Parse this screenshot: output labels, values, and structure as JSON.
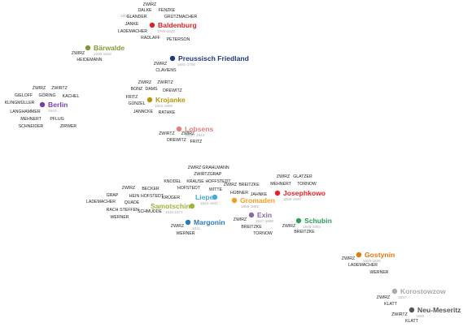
{
  "places": [
    {
      "id": "baldenburg",
      "name": "Baldenburg",
      "years": "1765-1822",
      "color": "#d62728",
      "names": [
        "ZWIRZ",
        "DALKE",
        "FENZKE",
        "GLANDER",
        "GRÜTZMACHER",
        "JANKE",
        "LADEMACHER",
        "RADLAFF",
        "PETERSON"
      ],
      "extra": "1801"
    },
    {
      "id": "barwalde",
      "name": "Bärwalde",
      "years": "1830-1832",
      "color": "#7f9a3a",
      "names": [
        "ZWIRZ",
        "HEIDEMANN"
      ]
    },
    {
      "id": "preussisch-friedland",
      "name": "Preussisch Friedland",
      "years": "1691-1708",
      "color": "#1f3a7a",
      "names": [
        "ZWIRZ",
        "CLAVIENS"
      ]
    },
    {
      "id": "berlin",
      "name": "Berlin",
      "years": "1943-...",
      "color": "#7b3fa6",
      "names": [
        "ZWIRZ",
        "ZWIRTZ",
        "GIELOFF",
        "GÖRING",
        "KACHEL",
        "KLINGMÜLLER",
        "LANGHAMMER",
        "MEHNERT",
        "PFLUG",
        "SCHNEIDER",
        "ZIRWER"
      ]
    },
    {
      "id": "krojanke",
      "name": "Krojanke",
      "years": "1802-1869",
      "color": "#b8960c",
      "names": [
        "ZWIRZ",
        "ZWIRTZ",
        "BONZ",
        "DAMS",
        "DREWITZ",
        "FRITZ",
        "GÜNZEL",
        "JANNCKE",
        "RATHKE"
      ]
    },
    {
      "id": "lobsens",
      "name": "Lobsens",
      "years": "1809 / 1843",
      "color": "#e0827a",
      "names": [
        "ZWIRTZ",
        "ZWIRZ",
        "DREWITZ",
        "FRITZ"
      ]
    },
    {
      "id": "liepe",
      "name": "Liepe",
      "years": "1844-1941",
      "color": "#4aa8d8",
      "names": [
        "ZWIRZ",
        "GRAHLMANN",
        "ZWIRTZ",
        "GRAP",
        "KNODEL",
        "KRAUSE",
        "HOFFSTEDT",
        "HOFSTEDT",
        "WITTE",
        "KRÜGER"
      ]
    },
    {
      "id": "samotschin",
      "name": "Samotschin",
      "years": "1811-1872",
      "color": "#a0b43a",
      "names": [
        "ZWIRZ",
        "BECKER",
        "GRAP",
        "HEIN",
        "HOFSTEDT",
        "LADEMACHER",
        "QUADE",
        "RACH",
        "STEFFEN",
        "SCHMUDDE",
        "WERNER"
      ]
    },
    {
      "id": "gromaden",
      "name": "Gromaden",
      "years": "1856-1882",
      "color": "#f0a020",
      "names": [
        "ZWIRZ",
        "BREITZKE",
        "HÜBNER",
        "JAHNKE"
      ]
    },
    {
      "id": "josephkowo",
      "name": "Josephkowo",
      "years": "1869-1900",
      "color": "#e8202a",
      "names": [
        "ZWIRZ",
        "GLATZER",
        "MEHNERT",
        "TORNOW"
      ]
    },
    {
      "id": "margonin",
      "name": "Margonin",
      "years": "1811",
      "color": "#2a7ab8",
      "names": [
        "ZWIRZ",
        "WERNER"
      ]
    },
    {
      "id": "exin",
      "name": "Exin",
      "years": "1847-1868",
      "color": "#8a6aa0",
      "names": [
        "ZWIRZ",
        "BREITZKE",
        "TORNOW"
      ]
    },
    {
      "id": "schubin",
      "name": "Schubin",
      "years": "1845-1884",
      "color": "#2aa05a",
      "names": [
        "ZWIRZ",
        "BREITZKE"
      ]
    },
    {
      "id": "gostynin",
      "name": "Gostynin",
      "years": "1820-1825",
      "color": "#e07a10",
      "names": [
        "ZWIRZ",
        "LADEMACHER",
        "WERNER"
      ]
    },
    {
      "id": "korostowzow",
      "name": "Korostowzow",
      "years": "1837",
      "color": "#aaaaaa",
      "names": [
        "ZWIRZ",
        "KLATT"
      ]
    },
    {
      "id": "neu-meseritz",
      "name": "Neu-Meseritz",
      "years": "1840",
      "color": "#555555",
      "names": [
        "ZWIRTZ",
        "KLATT"
      ]
    }
  ]
}
